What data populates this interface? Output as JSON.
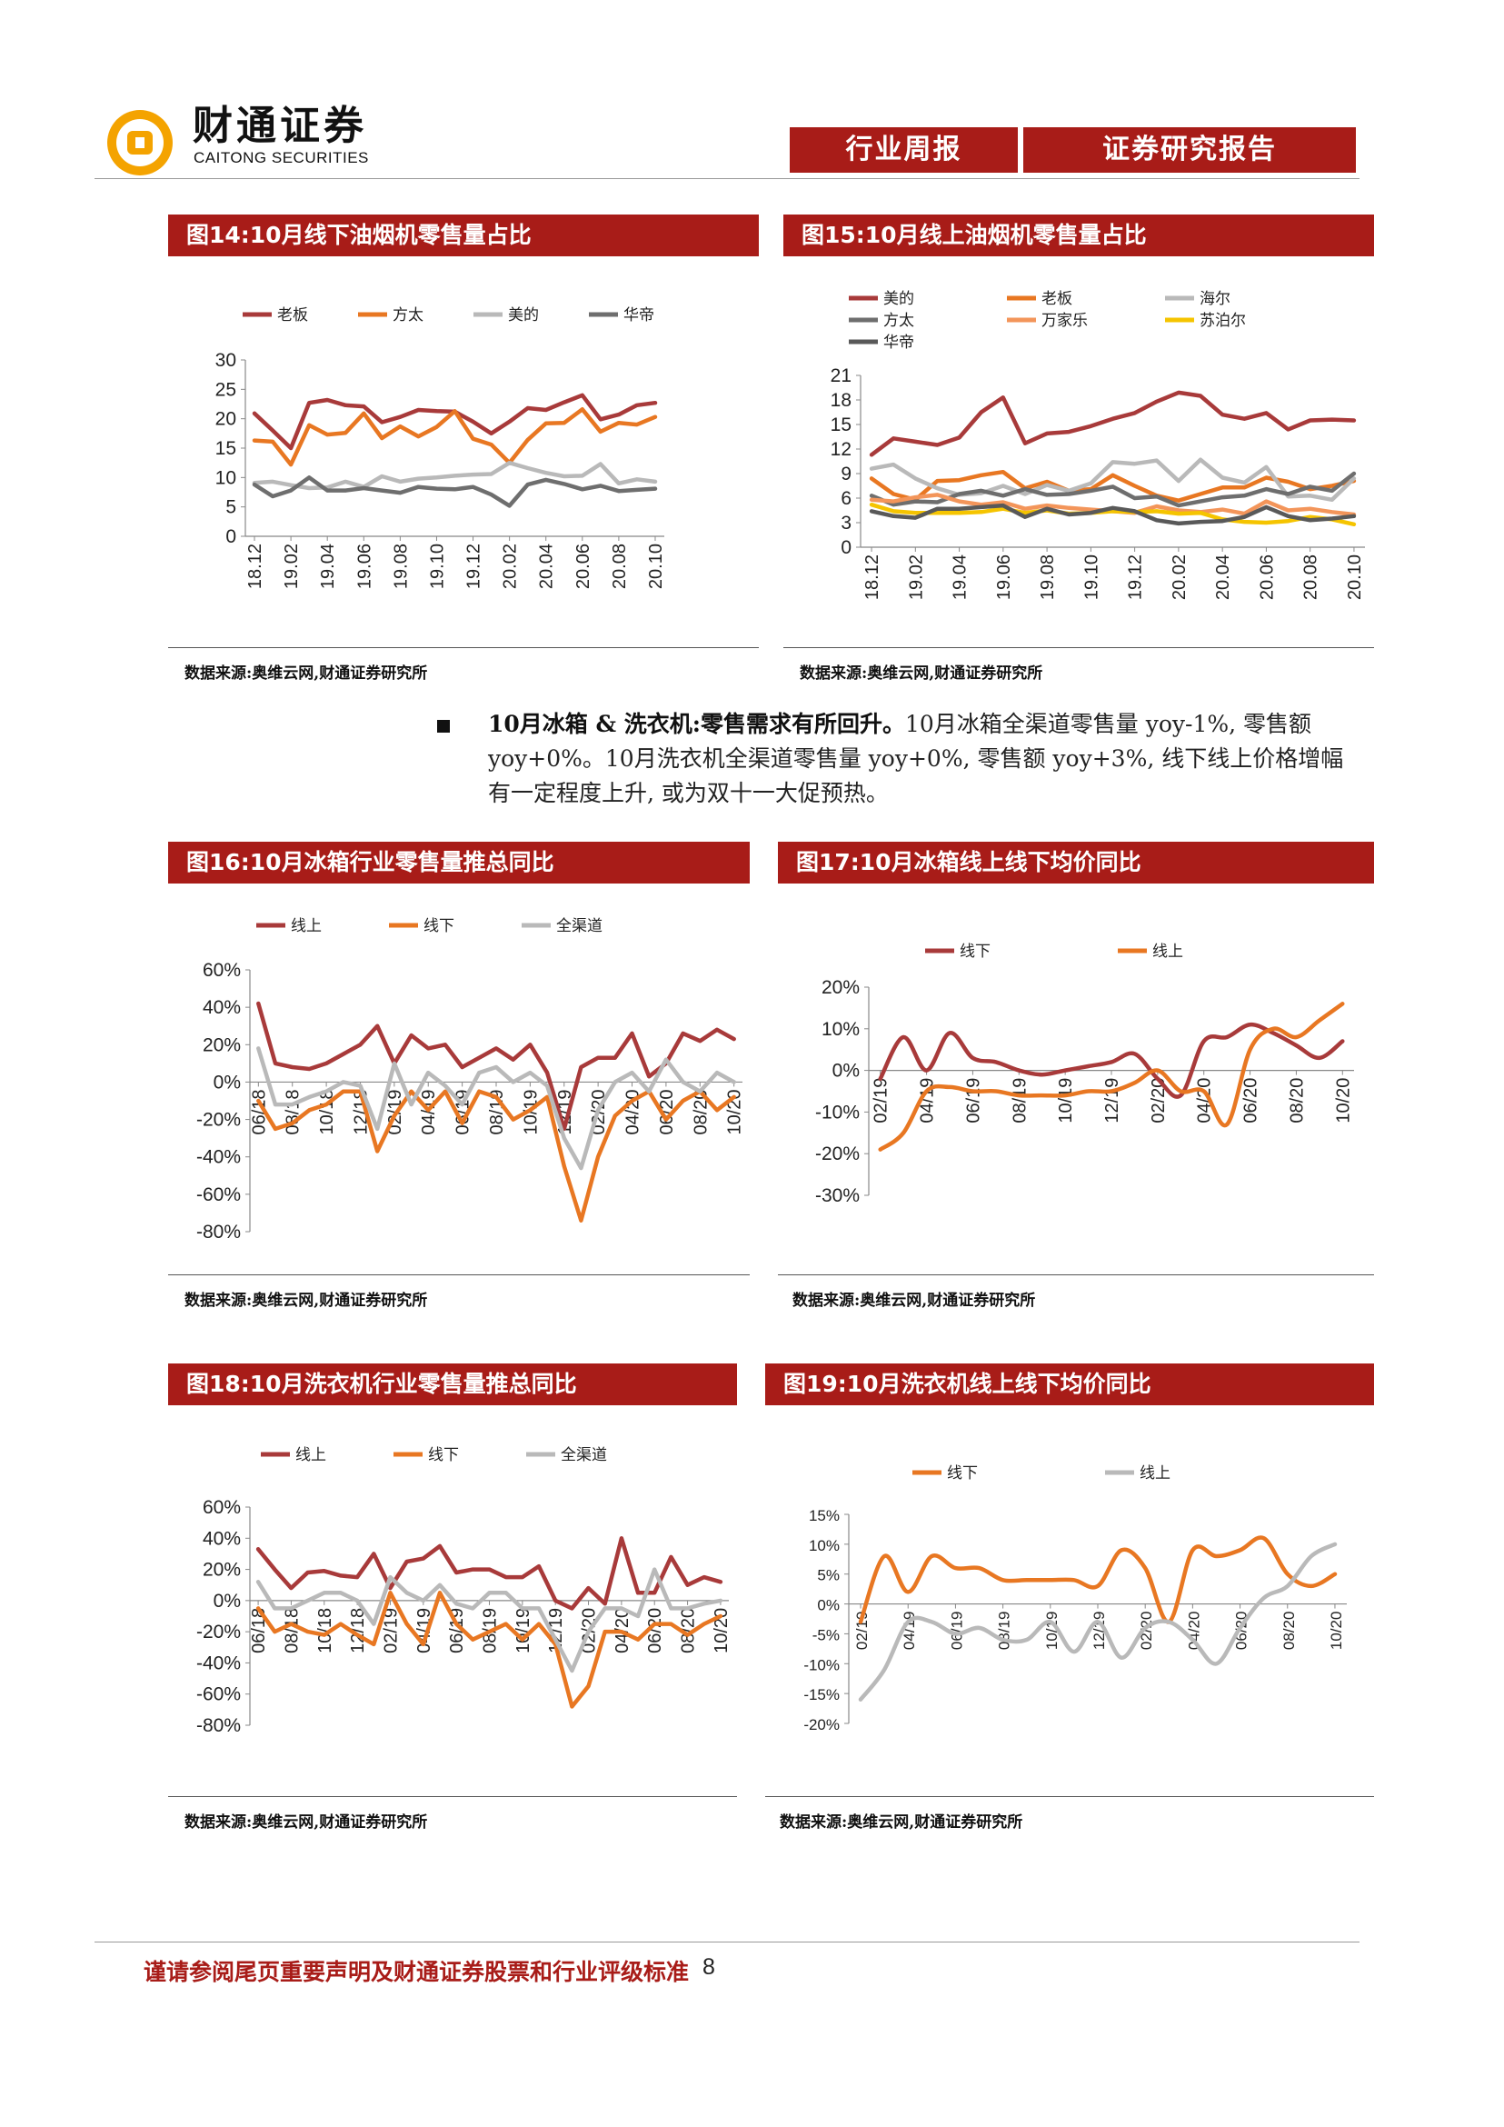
{
  "header": {
    "company_cn": "财通证券",
    "company_en": "CAITONG SECURITIES",
    "tag_left": "行业周报",
    "tag_right": "证券研究报告"
  },
  "bullet": {
    "bold": "10月冰箱 & 洗衣机:零售需求有所回升。",
    "text": "10月冰箱全渠道零售量 yoy-1%, 零售额 yoy+0%。10月洗衣机全渠道零售量 yoy+0%, 零售额 yoy+3%, 线下线上价格增幅有一定程度上升, 或为双十一大促预热。"
  },
  "footer": {
    "disclaimer": "谨请参阅尾页重要声明及财通证券股票和行业评级标准",
    "page": "8"
  },
  "colors": {
    "brand_red": "#a81c18",
    "darkred": "#a83a3a",
    "orange": "#e87722",
    "lightgray": "#b9b9b9",
    "darkgray": "#6e6e6e",
    "salmon": "#f3955a",
    "yellow": "#f5c400",
    "charcoal": "#595959"
  },
  "figures": [
    {
      "id": "fig14",
      "title": "图14:10月线下油烟机零售量占比",
      "source": "数据来源:奥维云网,财通证券研究所"
    },
    {
      "id": "fig15",
      "title": "图15:10月线上油烟机零售量占比",
      "source": "数据来源:奥维云网,财通证券研究所"
    },
    {
      "id": "fig16",
      "title": "图16:10月冰箱行业零售量推总同比",
      "source": "数据来源:奥维云网,财通证券研究所"
    },
    {
      "id": "fig17",
      "title": "图17:10月冰箱线上线下均价同比",
      "source": "数据来源:奥维云网,财通证券研究所"
    },
    {
      "id": "fig18",
      "title": "图18:10月洗衣机行业零售量推总同比",
      "source": "数据来源:奥维云网,财通证券研究所"
    },
    {
      "id": "fig19",
      "title": "图19:10月洗衣机线上线下均价同比",
      "source": "数据来源:奥维云网,财通证券研究所"
    }
  ],
  "chart_data": [
    {
      "id": "fig14",
      "type": "line",
      "title": "图14:10月线下油烟机零售量占比",
      "ylim": [
        0,
        30
      ],
      "yticks": [
        0,
        5,
        10,
        15,
        20,
        25,
        30
      ],
      "ytick_labels": [
        "0",
        "5",
        "10",
        "15",
        "20",
        "25",
        "30"
      ],
      "x": [
        "18.12",
        "19.01",
        "19.02",
        "19.03",
        "19.04",
        "19.05",
        "19.06",
        "19.07",
        "19.08",
        "19.09",
        "19.10",
        "19.11",
        "19.12",
        "20.01",
        "20.02",
        "20.03",
        "20.04",
        "20.05",
        "20.06",
        "20.07",
        "20.08",
        "20.09",
        "20.10"
      ],
      "xtick_labels": [
        "18.12",
        "19.02",
        "19.04",
        "19.06",
        "19.08",
        "19.10",
        "19.12",
        "20.02",
        "20.04",
        "20.06",
        "20.08",
        "20.10"
      ],
      "legend_position": "top",
      "series": [
        {
          "name": "老板",
          "color": "#a83a3a",
          "values": [
            20.9,
            18,
            15,
            22.7,
            23.2,
            22.3,
            22.1,
            19.4,
            20.3,
            21.5,
            21.3,
            21.2,
            19.5,
            17.5,
            19.5,
            21.8,
            21.5,
            22.8,
            24,
            19.9,
            20.7,
            22.3,
            22.7
          ]
        },
        {
          "name": "方太",
          "color": "#e87722",
          "values": [
            16.3,
            16.1,
            12.2,
            18.9,
            17.3,
            17.6,
            20.9,
            16.7,
            18.7,
            17,
            18.6,
            21.3,
            16.6,
            15.6,
            12.5,
            16.4,
            19.2,
            19.3,
            21.6,
            17.8,
            19.3,
            19,
            20.3
          ]
        },
        {
          "name": "美的",
          "color": "#b9b9b9",
          "values": [
            9.1,
            9.3,
            8.7,
            8.2,
            8.3,
            9.3,
            8.4,
            10.2,
            9.3,
            9.8,
            10,
            10.3,
            10.5,
            10.6,
            12.5,
            11.6,
            10.8,
            10.2,
            10.3,
            12.3,
            9,
            9.7,
            9.3
          ]
        },
        {
          "name": "华帝",
          "color": "#6e6e6e",
          "values": [
            8.8,
            6.8,
            7.8,
            10,
            7.8,
            7.8,
            8.2,
            7.8,
            7.4,
            8.4,
            8.1,
            8,
            8.4,
            7.1,
            5.2,
            8.8,
            9.6,
            8.9,
            8,
            8.6,
            7.7,
            7.9,
            8.1
          ]
        }
      ]
    },
    {
      "id": "fig15",
      "type": "line",
      "title": "图15:10月线上油烟机零售量占比",
      "ylim": [
        0,
        21
      ],
      "yticks": [
        0,
        3,
        6,
        9,
        12,
        15,
        18,
        21
      ],
      "ytick_labels": [
        "0",
        "3",
        "6",
        "9",
        "12",
        "15",
        "18",
        "21"
      ],
      "x": [
        "18.12",
        "19.01",
        "19.02",
        "19.03",
        "19.04",
        "19.05",
        "19.06",
        "19.07",
        "19.08",
        "19.09",
        "19.10",
        "19.11",
        "19.12",
        "20.01",
        "20.02",
        "20.03",
        "20.04",
        "20.05",
        "20.06",
        "20.07",
        "20.08",
        "20.09",
        "20.10"
      ],
      "xtick_labels": [
        "18.12",
        "19.02",
        "19.04",
        "19.06",
        "19.08",
        "19.10",
        "19.12",
        "20.02",
        "20.04",
        "20.06",
        "20.08",
        "20.10"
      ],
      "legend_position": "top",
      "series": [
        {
          "name": "美的",
          "color": "#a83a3a",
          "values": [
            11.3,
            13.3,
            12.9,
            12.5,
            13.4,
            16.5,
            18.3,
            12.7,
            13.9,
            14.1,
            14.8,
            15.7,
            16.4,
            17.8,
            18.9,
            18.5,
            16.2,
            15.7,
            16.4,
            14.4,
            15.5,
            15.6,
            15.5
          ]
        },
        {
          "name": "老板",
          "color": "#e87722",
          "values": [
            8.4,
            6.5,
            5.8,
            8.1,
            8.2,
            8.8,
            9.2,
            7.2,
            8,
            6.9,
            7.1,
            8.8,
            7.5,
            6.3,
            5.7,
            6.5,
            7.3,
            7.3,
            8.5,
            8,
            7.1,
            7.5,
            8.1
          ]
        },
        {
          "name": "海尔",
          "color": "#b9b9b9",
          "values": [
            9.6,
            10.1,
            8.4,
            7.2,
            6.4,
            6.6,
            7.5,
            6.5,
            7.6,
            6.9,
            7.8,
            10.4,
            10.2,
            10.6,
            8.1,
            10.7,
            8.5,
            7.9,
            9.8,
            6.2,
            6.3,
            5.8,
            8.4
          ]
        },
        {
          "name": "方太",
          "color": "#6e6e6e",
          "values": [
            6.3,
            5.2,
            5.6,
            5.5,
            6.5,
            6.9,
            6.3,
            7.1,
            6.4,
            6.5,
            6.9,
            7.4,
            6,
            6.2,
            5.1,
            5.6,
            6.1,
            6.3,
            7.1,
            6.5,
            7.4,
            6.9,
            9
          ]
        },
        {
          "name": "万家乐",
          "color": "#f3955a",
          "values": [
            5.8,
            5.6,
            6.1,
            6.4,
            5.6,
            5.2,
            5.5,
            4.7,
            5.1,
            4.8,
            4.6,
            4.4,
            4.2,
            5,
            4.5,
            4.3,
            4.6,
            4.1,
            5.6,
            4.5,
            4.7,
            4.3,
            4
          ]
        },
        {
          "name": "苏泊尔",
          "color": "#f5c400",
          "values": [
            5.2,
            4.4,
            4.2,
            4.2,
            4.2,
            4.3,
            4.7,
            4.2,
            4.5,
            4.1,
            4.2,
            4.4,
            4.3,
            4.4,
            4.1,
            4.2,
            3.4,
            3.1,
            3,
            3.2,
            3.7,
            3.4,
            2.8
          ]
        },
        {
          "name": "华帝",
          "color": "#595959",
          "values": [
            4.4,
            3.8,
            3.6,
            4.7,
            4.7,
            4.9,
            5.1,
            3.7,
            4.7,
            4,
            4.2,
            4.8,
            4.4,
            3.3,
            2.9,
            3.1,
            3.2,
            3.7,
            4.9,
            3.8,
            3.3,
            3.5,
            3.8
          ]
        }
      ]
    },
    {
      "id": "fig16",
      "type": "line",
      "title": "图16:10月冰箱行业零售量推总同比",
      "ylim": [
        -80,
        60
      ],
      "yticks": [
        -80,
        -60,
        -40,
        -20,
        0,
        20,
        40,
        60
      ],
      "ytick_labels": [
        "-80%",
        "-60%",
        "-40%",
        "-20%",
        "0%",
        "20%",
        "40%",
        "60%"
      ],
      "x": [
        "06/18",
        "07/18",
        "08/18",
        "09/18",
        "10/18",
        "11/18",
        "12/18",
        "01/19",
        "02/19",
        "03/19",
        "04/19",
        "05/19",
        "06/19",
        "07/19",
        "08/19",
        "09/19",
        "10/19",
        "11/19",
        "12/19",
        "01/20",
        "02/20",
        "03/20",
        "04/20",
        "05/20",
        "06/20",
        "07/20",
        "08/20",
        "09/20",
        "10/20"
      ],
      "xtick_labels": [
        "06/18",
        "08/18",
        "10/18",
        "12/18",
        "02/19",
        "04/19",
        "06/19",
        "08/19",
        "10/19",
        "12/19",
        "02/20",
        "04/20",
        "06/20",
        "08/20",
        "10/20"
      ],
      "legend_position": "top",
      "series": [
        {
          "name": "线上",
          "color": "#a83a3a",
          "values": [
            42,
            10,
            8,
            7,
            10,
            15,
            20,
            30,
            10,
            25,
            18,
            20,
            8,
            13,
            18,
            12,
            20,
            5,
            -25,
            8,
            13,
            13,
            26,
            3,
            10,
            26,
            22,
            28,
            23
          ]
        },
        {
          "name": "线下",
          "color": "#e87722",
          "values": [
            -10,
            -25,
            -22,
            -15,
            -12,
            -5,
            -5,
            -37,
            -18,
            -5,
            -15,
            -5,
            -22,
            -5,
            -8,
            -20,
            -15,
            -8,
            -45,
            -74,
            -40,
            -18,
            -10,
            -5,
            -20,
            -10,
            -5,
            -15,
            -8
          ]
        },
        {
          "name": "全渠道",
          "color": "#b9b9b9",
          "values": [
            18,
            -12,
            -12,
            -8,
            -5,
            0,
            -2,
            -25,
            10,
            -12,
            5,
            -2,
            -12,
            5,
            8,
            0,
            5,
            -2,
            -30,
            -46,
            -15,
            0,
            5,
            -5,
            12,
            0,
            -5,
            5,
            0
          ]
        }
      ]
    },
    {
      "id": "fig17",
      "type": "line",
      "title": "图17:10月冰箱线上线下均价同比",
      "ylim": [
        -30,
        20
      ],
      "yticks": [
        -30,
        -20,
        -10,
        0,
        10,
        20
      ],
      "ytick_labels": [
        "-30%",
        "-20%",
        "-10%",
        "0%",
        "10%",
        "20%"
      ],
      "x": [
        "02/19",
        "03/19",
        "04/19",
        "05/19",
        "06/19",
        "07/19",
        "08/19",
        "09/19",
        "10/19",
        "11/19",
        "12/19",
        "01/20",
        "02/20",
        "03/20",
        "04/20",
        "05/20",
        "06/20",
        "07/20",
        "08/20",
        "09/20",
        "10/20"
      ],
      "xtick_labels": [
        "02/19",
        "04/19",
        "06/19",
        "08/19",
        "10/19",
        "12/19",
        "02/20",
        "04/20",
        "06/20",
        "08/20",
        "10/20"
      ],
      "legend_position": "top",
      "series": [
        {
          "name": "线下",
          "color": "#a83a3a",
          "values": [
            -2,
            8,
            0,
            9,
            3,
            2,
            0,
            -1,
            0,
            1,
            2,
            4,
            -2,
            -6,
            7,
            8,
            11,
            9,
            6,
            3,
            7
          ]
        },
        {
          "name": "线上",
          "color": "#e87722",
          "values": [
            -19,
            -15,
            -5,
            -4,
            -5,
            -5,
            -6,
            -6,
            -6,
            -5,
            -5,
            -3,
            0,
            -5,
            -5,
            -13,
            5,
            10,
            8,
            12,
            16
          ]
        }
      ]
    },
    {
      "id": "fig18",
      "type": "line",
      "title": "图18:10月洗衣机行业零售量推总同比",
      "ylim": [
        -80,
        60
      ],
      "yticks": [
        -80,
        -60,
        -40,
        -20,
        0,
        20,
        40,
        60
      ],
      "ytick_labels": [
        "-80%",
        "-60%",
        "-40%",
        "-20%",
        "0%",
        "20%",
        "40%",
        "60%"
      ],
      "x": [
        "06/18",
        "07/18",
        "08/18",
        "09/18",
        "10/18",
        "11/18",
        "12/18",
        "01/19",
        "02/19",
        "03/19",
        "04/19",
        "05/19",
        "06/19",
        "07/19",
        "08/19",
        "09/19",
        "10/19",
        "11/19",
        "12/19",
        "01/20",
        "02/20",
        "03/20",
        "04/20",
        "05/20",
        "06/20",
        "07/20",
        "08/20",
        "09/20",
        "10/20"
      ],
      "xtick_labels": [
        "06/18",
        "08/18",
        "10/18",
        "12/18",
        "02/19",
        "04/19",
        "06/19",
        "08/19",
        "10/19",
        "12/19",
        "02/20",
        "04/20",
        "06/20",
        "08/20",
        "10/20"
      ],
      "legend_position": "top",
      "series": [
        {
          "name": "线上",
          "color": "#a83a3a",
          "values": [
            33,
            20,
            8,
            18,
            19,
            16,
            15,
            30,
            8,
            25,
            27,
            35,
            18,
            20,
            20,
            15,
            15,
            22,
            0,
            -5,
            8,
            -2,
            40,
            5,
            5,
            28,
            10,
            15,
            12
          ]
        },
        {
          "name": "线下",
          "color": "#e87722",
          "values": [
            -5,
            -20,
            -15,
            -20,
            -22,
            -15,
            -22,
            -28,
            5,
            -15,
            -28,
            5,
            -15,
            -25,
            -20,
            -15,
            -25,
            -15,
            -28,
            -68,
            -55,
            -20,
            -20,
            -25,
            -15,
            -15,
            -22,
            -15,
            -10
          ]
        },
        {
          "name": "全渠道",
          "color": "#b9b9b9",
          "values": [
            12,
            -5,
            -5,
            0,
            5,
            5,
            0,
            -15,
            15,
            5,
            0,
            10,
            -2,
            -5,
            5,
            5,
            -5,
            -5,
            -25,
            -45,
            -20,
            -5,
            -5,
            -10,
            20,
            -5,
            -5,
            -2,
            0
          ]
        }
      ]
    },
    {
      "id": "fig19",
      "type": "line",
      "title": "图19:10月洗衣机线上线下均价同比",
      "ylim": [
        -20,
        15
      ],
      "yticks": [
        -20,
        -15,
        -10,
        -5,
        0,
        5,
        10,
        15
      ],
      "ytick_labels": [
        "-20%",
        "-15%",
        "-10%",
        "-5%",
        "0%",
        "5%",
        "10%",
        "15%"
      ],
      "x": [
        "02/19",
        "03/19",
        "04/19",
        "05/19",
        "06/19",
        "07/19",
        "08/19",
        "09/19",
        "10/19",
        "11/19",
        "12/19",
        "01/20",
        "02/20",
        "03/20",
        "04/20",
        "05/20",
        "06/20",
        "07/20",
        "08/20",
        "09/20",
        "10/20"
      ],
      "xtick_labels": [
        "02/19",
        "04/19",
        "06/19",
        "08/19",
        "10/19",
        "12/19",
        "02/20",
        "04/20",
        "06/20",
        "08/20",
        "10/20"
      ],
      "legend_position": "top",
      "series": [
        {
          "name": "线下",
          "color": "#e87722",
          "values": [
            -3,
            8,
            2,
            8,
            6,
            6,
            4,
            4,
            4,
            4,
            3,
            9,
            6,
            -3,
            9,
            8,
            9,
            11,
            5,
            3,
            5
          ]
        },
        {
          "name": "线上",
          "color": "#b9b9b9",
          "values": [
            -16,
            -11,
            -3,
            -3,
            -5,
            -4,
            -6,
            -6,
            -3,
            -8,
            -3,
            -9,
            -4,
            -3,
            -6,
            -10,
            -4,
            1,
            3,
            8,
            10
          ]
        }
      ]
    }
  ]
}
